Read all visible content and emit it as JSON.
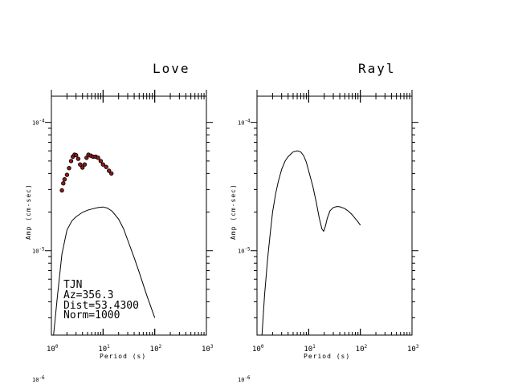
{
  "colors": {
    "background": "#ffffff",
    "axis": "#000000",
    "curve": "#000000",
    "marker_fill": "#8b1a1a",
    "marker_edge": "#000000"
  },
  "chart_data": [
    {
      "type": "line",
      "title": "Love",
      "xlabel": "Period (s)",
      "ylabel": "Amp (cm-sec)",
      "x_scale": "log",
      "y_scale": "log",
      "xlim": [
        1,
        1000
      ],
      "ylim": [
        2.2e-06,
        0.00016
      ],
      "x_ticks": [
        {
          "base": "10",
          "exp": "0",
          "value": 1
        },
        {
          "base": "10",
          "exp": "1",
          "value": 10
        },
        {
          "base": "10",
          "exp": "2",
          "value": 100
        },
        {
          "base": "10",
          "exp": "3",
          "value": 1000
        }
      ],
      "y_ticks": [
        {
          "base": "10",
          "exp": "-4",
          "value": 0.0001
        },
        {
          "base": "10",
          "exp": "-5",
          "value": 1e-05
        },
        {
          "base": "10",
          "exp": "-6",
          "value": 1e-06
        }
      ],
      "annotations": [
        "TJN",
        "Az=356.3",
        "Dist=53.4300",
        "Norm=1000"
      ],
      "series": [
        {
          "kind": "line",
          "points": [
            [
              1.1,
              2.2e-06
            ],
            [
              1.3,
              4.3e-06
            ],
            [
              1.6,
              9.4e-06
            ],
            [
              2.0,
              1.45e-05
            ],
            [
              2.5,
              1.71e-05
            ],
            [
              3.0,
              1.84e-05
            ],
            [
              4.0,
              1.99e-05
            ],
            [
              5.0,
              2.07e-05
            ],
            [
              6.0,
              2.11e-05
            ],
            [
              8.0,
              2.17e-05
            ],
            [
              10.0,
              2.19e-05
            ],
            [
              12.0,
              2.15e-05
            ],
            [
              15.0,
              2.03e-05
            ],
            [
              20.0,
              1.76e-05
            ],
            [
              25.0,
              1.48e-05
            ],
            [
              30.0,
              1.21e-05
            ],
            [
              40.0,
              8.8e-06
            ],
            [
              50.0,
              6.8e-06
            ],
            [
              70.0,
              4.5e-06
            ],
            [
              100.0,
              3e-06
            ]
          ]
        },
        {
          "kind": "scatter",
          "points": [
            [
              1.6,
              2.95e-05
            ],
            [
              1.7,
              3.35e-05
            ],
            [
              1.8,
              3.6e-05
            ],
            [
              2.0,
              3.9e-05
            ],
            [
              2.2,
              4.4e-05
            ],
            [
              2.4,
              5e-05
            ],
            [
              2.6,
              5.4e-05
            ],
            [
              2.8,
              5.6e-05
            ],
            [
              3.0,
              5.55e-05
            ],
            [
              3.3,
              5.2e-05
            ],
            [
              3.6,
              4.7e-05
            ],
            [
              4.0,
              4.45e-05
            ],
            [
              4.4,
              4.7e-05
            ],
            [
              4.8,
              5.3e-05
            ],
            [
              5.2,
              5.6e-05
            ],
            [
              5.8,
              5.5e-05
            ],
            [
              6.4,
              5.4e-05
            ],
            [
              7.2,
              5.4e-05
            ],
            [
              8.0,
              5.3e-05
            ],
            [
              9.0,
              5e-05
            ],
            [
              10.0,
              4.7e-05
            ],
            [
              11.5,
              4.5e-05
            ],
            [
              13.0,
              4.2e-05
            ],
            [
              14.5,
              4e-05
            ]
          ]
        }
      ]
    },
    {
      "type": "line",
      "title": "Rayl",
      "xlabel": "Period (s)",
      "ylabel": "Amp (cm-sec)",
      "x_scale": "log",
      "y_scale": "log",
      "xlim": [
        1,
        1000
      ],
      "ylim": [
        2.2e-06,
        0.00016
      ],
      "x_ticks": [
        {
          "base": "10",
          "exp": "0",
          "value": 1
        },
        {
          "base": "10",
          "exp": "1",
          "value": 10
        },
        {
          "base": "10",
          "exp": "2",
          "value": 100
        },
        {
          "base": "10",
          "exp": "3",
          "value": 1000
        }
      ],
      "y_ticks": [
        {
          "base": "10",
          "exp": "-4",
          "value": 0.0001
        },
        {
          "base": "10",
          "exp": "-5",
          "value": 1e-05
        },
        {
          "base": "10",
          "exp": "-6",
          "value": 1e-06
        }
      ],
      "series": [
        {
          "kind": "line",
          "points": [
            [
              1.0,
              2.2e-06
            ],
            [
              1.25,
              2.2e-06
            ],
            [
              1.4,
              4.5e-06
            ],
            [
              1.6,
              8.5e-06
            ],
            [
              1.8,
              1.35e-05
            ],
            [
              2.0,
              2e-05
            ],
            [
              2.3,
              2.8e-05
            ],
            [
              2.6,
              3.5e-05
            ],
            [
              3.0,
              4.3e-05
            ],
            [
              3.5,
              5e-05
            ],
            [
              4.0,
              5.4e-05
            ],
            [
              5.0,
              5.9e-05
            ],
            [
              6.0,
              6e-05
            ],
            [
              7.0,
              5.9e-05
            ],
            [
              8.0,
              5.5e-05
            ],
            [
              9.0,
              4.9e-05
            ],
            [
              10.0,
              4.2e-05
            ],
            [
              12.0,
              3.2e-05
            ],
            [
              14.0,
              2.4e-05
            ],
            [
              16.0,
              1.8e-05
            ],
            [
              18.0,
              1.48e-05
            ],
            [
              19.5,
              1.42e-05
            ],
            [
              21.0,
              1.55e-05
            ],
            [
              23.0,
              1.8e-05
            ],
            [
              26.0,
              2.05e-05
            ],
            [
              30.0,
              2.17e-05
            ],
            [
              35.0,
              2.21e-05
            ],
            [
              40.0,
              2.2e-05
            ],
            [
              50.0,
              2.13e-05
            ],
            [
              60.0,
              2.02e-05
            ],
            [
              70.0,
              1.9e-05
            ],
            [
              80.0,
              1.78e-05
            ],
            [
              90.0,
              1.68e-05
            ],
            [
              100.0,
              1.58e-05
            ]
          ]
        }
      ]
    }
  ]
}
